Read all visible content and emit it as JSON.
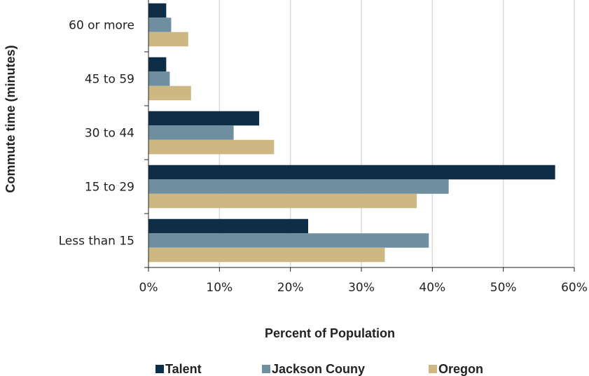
{
  "chart_data": {
    "type": "bar",
    "orientation": "horizontal",
    "x_label": "Percent of Population",
    "y_label": "Commute time (minutes)",
    "categories": [
      "60 or more",
      "45 to 59",
      "30 to 44",
      "15 to 29",
      "Less than 15"
    ],
    "series": [
      {
        "name": "Talent",
        "color": "#0e2d47",
        "values": [
          2.5,
          2.5,
          15.6,
          57.3,
          22.5
        ]
      },
      {
        "name": "Jackson Couny",
        "color": "#6e8fa0",
        "values": [
          3.2,
          3.0,
          12.0,
          42.3,
          39.5
        ]
      },
      {
        "name": "Oregon",
        "color": "#cdb883",
        "values": [
          5.6,
          6.0,
          17.7,
          37.8,
          33.3
        ]
      }
    ],
    "xlim": [
      0,
      60
    ],
    "xticks": [
      {
        "value": 0,
        "label": "0%"
      },
      {
        "value": 10,
        "label": "10%"
      },
      {
        "value": 20,
        "label": "20%"
      },
      {
        "value": 30,
        "label": "30%"
      },
      {
        "value": 40,
        "label": "40%"
      },
      {
        "value": 50,
        "label": "50%"
      },
      {
        "value": 60,
        "label": "60%"
      }
    ],
    "grid": true,
    "legend": "bottom"
  }
}
